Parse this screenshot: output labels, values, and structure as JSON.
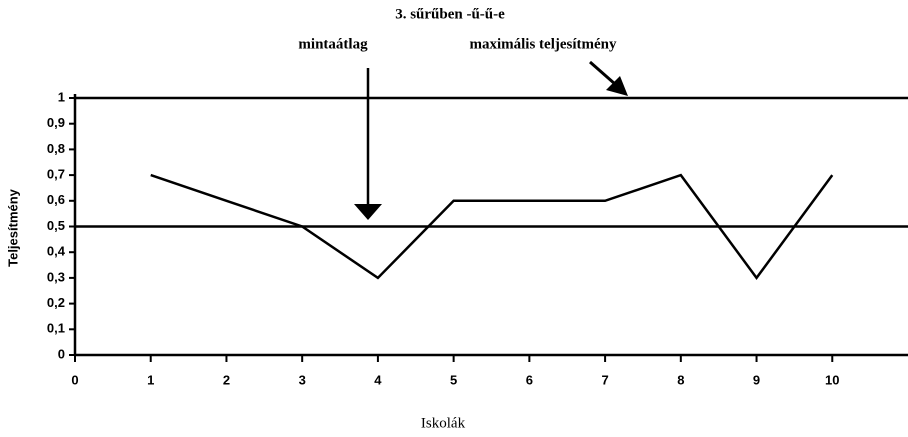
{
  "chart_data": {
    "type": "line",
    "title": "3. sűrűben -ű-ű-e",
    "x_label": "Iskolák",
    "y_label": "Teljesítmény",
    "x": [
      1,
      2,
      3,
      4,
      5,
      6,
      7,
      8,
      9,
      10
    ],
    "values": [
      0.7,
      0.6,
      0.5,
      0.3,
      0.6,
      0.6,
      0.6,
      0.7,
      0.3,
      0.7
    ],
    "color": "#000000",
    "xlim": [
      0,
      11
    ],
    "xticks": [
      0,
      1,
      2,
      3,
      4,
      5,
      6,
      7,
      8,
      9,
      10
    ],
    "ylim": [
      0,
      1
    ],
    "yticks": [
      0,
      {
        "value": 0.1,
        "label": "0,1"
      },
      {
        "value": 0.2,
        "label": "0,2"
      },
      {
        "value": 0.3,
        "label": "0,3"
      },
      {
        "value": 0.4,
        "label": "0,4"
      },
      {
        "value": 0.5,
        "label": "0,5"
      },
      {
        "value": 0.6,
        "label": "0,6"
      },
      {
        "value": 0.7,
        "label": "0,7"
      },
      {
        "value": 0.8,
        "label": "0,8"
      },
      {
        "value": 0.9,
        "label": "0,9"
      },
      1
    ],
    "reference_lines": [
      {
        "value": 1,
        "label": "maximális teljesítmény"
      },
      {
        "value": 0.5,
        "label": "mintaátlag"
      }
    ]
  }
}
